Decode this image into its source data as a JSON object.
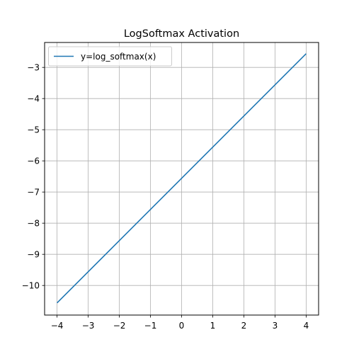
{
  "chart_data": {
    "type": "line",
    "title": "LogSoftmax Activation",
    "xlabel": "",
    "ylabel": "",
    "xlim": [
      -4.4,
      4.4
    ],
    "ylim": [
      -10.95,
      -2.2
    ],
    "xticks": [
      -4,
      -3,
      -2,
      -1,
      0,
      1,
      2,
      3,
      4
    ],
    "yticks": [
      -10,
      -9,
      -8,
      -7,
      -6,
      -5,
      -4,
      -3
    ],
    "xtick_labels": [
      "−4",
      "−3",
      "−2",
      "−1",
      "0",
      "1",
      "2",
      "3",
      "4"
    ],
    "ytick_labels": [
      "−10",
      "−9",
      "−8",
      "−7",
      "−6",
      "−5",
      "−4",
      "−3"
    ],
    "grid": true,
    "legend": {
      "position": "top-left"
    },
    "series": [
      {
        "name": "y=log_softmax(x)",
        "color": "#1f77b4",
        "x": [
          -4,
          -3,
          -2,
          -1,
          0,
          1,
          2,
          3,
          4
        ],
        "y": [
          -10.56,
          -9.56,
          -8.56,
          -7.56,
          -6.56,
          -5.56,
          -4.56,
          -3.56,
          -2.56
        ]
      }
    ]
  }
}
